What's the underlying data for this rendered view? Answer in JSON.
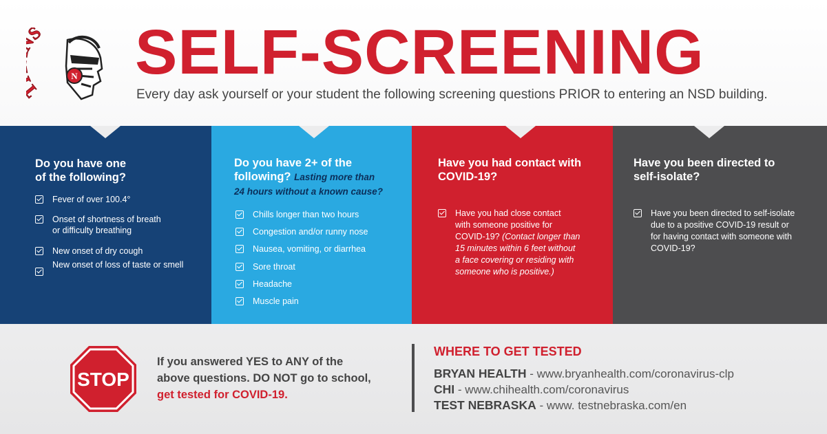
{
  "header": {
    "title": "SELF-SCREENING",
    "subtitle": "Every day ask yourself or your student the following screening questions PRIOR to entering an NSD building.",
    "logo_text": "TITANS",
    "logo_badge": "N"
  },
  "panels": [
    {
      "question_line1": "Do you have one",
      "question_line2": "of the following?",
      "items": [
        {
          "line1": "Fever of over 100.4°",
          "line2": ""
        },
        {
          "line1": "Onset of shortness of breath",
          "line2": "or difficulty breathing"
        },
        {
          "line1": "New onset of dry cough",
          "line2": ""
        },
        {
          "line1": "New onset of loss of taste or smell",
          "line2": ""
        }
      ]
    },
    {
      "question_line1": "Do you have 2+ of the",
      "question_line2": "following?",
      "question_note1": "Lasting more than",
      "question_note2": "24 hours without a known cause?",
      "items": [
        {
          "line1": "Chills longer than two hours"
        },
        {
          "line1": "Congestion and/or runny nose"
        },
        {
          "line1": "Nausea, vomiting, or diarrhea"
        },
        {
          "line1": "Sore throat"
        },
        {
          "line1": "Headache"
        },
        {
          "line1": "Muscle pain"
        }
      ]
    },
    {
      "question_line1": "Have you had contact with",
      "question_line2": "COVID-19?",
      "item_lines": [
        "Have you had close contact",
        "with someone positive for",
        "COVID-19?",
        "(Contact longer than",
        "15 minutes within 6 feet without",
        "a face covering or residing with",
        "someone who is positive.)"
      ]
    },
    {
      "question_line1": "Have you been directed to",
      "question_line2": "self-isolate?",
      "item_lines": [
        "Have you been directed to self-isolate",
        "due to a positive COVID-19 result or",
        "for having contact with someone with",
        "COVID-19?"
      ]
    }
  ],
  "stop_sign": {
    "label": "STOP"
  },
  "warning": {
    "line1": "If you answered YES to ANY of the",
    "line2": "above questions. DO NOT go to school,",
    "line3": "get tested for COVID-19."
  },
  "testing": {
    "title": "WHERE TO GET TESTED",
    "sites": [
      {
        "name": "BRYAN HEALTH",
        "sep": " - ",
        "url": "www.bryanhealth.com/coronavirus-clp"
      },
      {
        "name": "CHI",
        "sep": " - ",
        "url": "www.chihealth.com/coronavirus"
      },
      {
        "name": "TEST NEBRASKA",
        "sep": " - ",
        "url": "www. testnebraska.com/en"
      }
    ]
  },
  "colors": {
    "red": "#d0202e",
    "navy": "#164276",
    "sky": "#2aa9e1",
    "charcoal": "#4d4d4f"
  }
}
